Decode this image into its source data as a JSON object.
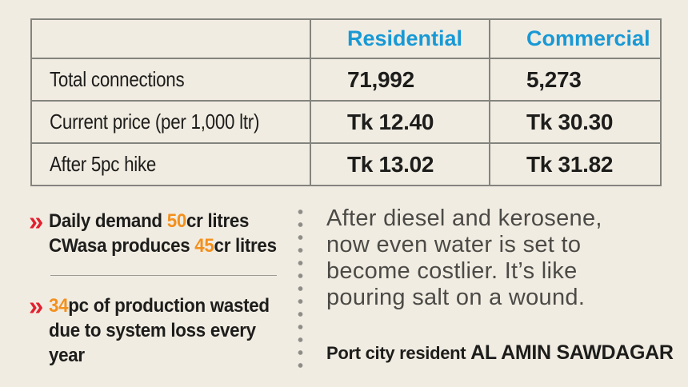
{
  "colors": {
    "background": "#f1ece2",
    "table_line": "#84847e",
    "header_blue": "#1899d5",
    "text_black": "#1d1d1b",
    "accent_orange": "#f3901d",
    "bullet_red": "#e2202e",
    "quote_gray": "#4b4a46",
    "dot_gray": "#8d8d87",
    "divider_gray": "#9b9a94"
  },
  "chart_data": {
    "type": "table",
    "columns": [
      "",
      "Residential",
      "Commercial"
    ],
    "rows": [
      [
        "Total connections",
        "71,992",
        "5,273"
      ],
      [
        "Current price (per 1,000 ltr)",
        "Tk 12.40",
        "Tk 30.30"
      ],
      [
        "After 5pc hike",
        "Tk 13.02",
        "Tk 31.82"
      ]
    ],
    "facts": [
      "Daily demand 50cr litres / CWasa produces 45cr litres",
      "34pc of production wasted due to system loss every year"
    ],
    "quote": "After diesel and kerosene, now even water is set to become costlier. It’s like pouring salt on a wound.",
    "quote_attribution": "Port city resident AL AMIN SAWDAGAR"
  },
  "facts": {
    "bullet_icon": "»",
    "item1": {
      "lines": [
        {
          "pre": "Daily demand ",
          "hl": "50",
          "post": "cr litres"
        },
        {
          "pre": "CWasa produces ",
          "hl": "45",
          "post": "cr litres"
        }
      ]
    },
    "item2": {
      "lines": [
        {
          "pre": "",
          "hl": "34",
          "post": "pc of production wasted"
        },
        {
          "pre": "due to system loss every",
          "hl": "",
          "post": ""
        },
        {
          "pre": "year",
          "hl": "",
          "post": ""
        }
      ]
    }
  },
  "quote": {
    "lines": [
      "After diesel and kerosene,",
      "now even water is set to",
      "become costlier. It’s like",
      "pouring salt on a wound."
    ],
    "attribution_prefix": "Port city resident ",
    "attribution_name": "AL AMIN SAWDAGAR"
  }
}
